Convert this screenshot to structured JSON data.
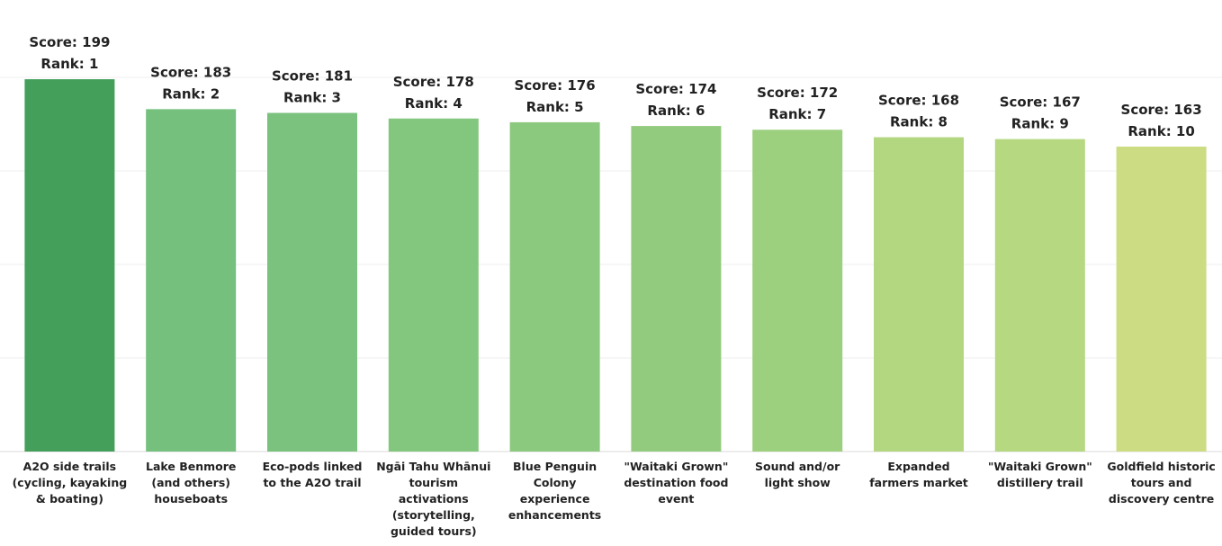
{
  "chart_data": {
    "type": "bar",
    "categories": [
      "A2O side trails (cycling, kayaking & boating)",
      "Lake Benmore (and others) houseboats",
      "Eco-pods linked to the A2O trail",
      "Ngāi Tahu Whānui tourism activations (storytelling, guided tours)",
      "Blue Penguin Colony experience enhancements",
      "\"Waitaki Grown\" destination food event",
      "Sound and/or light show",
      "Expanded farmers market",
      "\"Waitaki Grown\" distillery trail",
      "Goldfield historic tours and discovery centre"
    ],
    "values": [
      199,
      183,
      181,
      178,
      176,
      174,
      172,
      168,
      167,
      163
    ],
    "value_labels": [
      "Score: 199",
      "Score: 183",
      "Score: 181",
      "Score: 178",
      "Score: 176",
      "Score: 174",
      "Score: 172",
      "Score: 168",
      "Score: 167",
      "Score: 163"
    ],
    "rank_labels": [
      "Rank: 1",
      "Rank: 2",
      "Rank: 3",
      "Rank: 4",
      "Rank: 5",
      "Rank: 6",
      "Rank: 7",
      "Rank: 8",
      "Rank: 9",
      "Rank: 10"
    ],
    "colors": [
      "#439f5a",
      "#74c07c",
      "#7ac27d",
      "#83c67e",
      "#8bc97e",
      "#93cb7e",
      "#9ccf7e",
      "#b2d780",
      "#b5d880",
      "#ccdc82"
    ],
    "ylim": [
      0,
      200
    ],
    "yticks": [
      0,
      50,
      100,
      150,
      200
    ],
    "grid": true
  }
}
